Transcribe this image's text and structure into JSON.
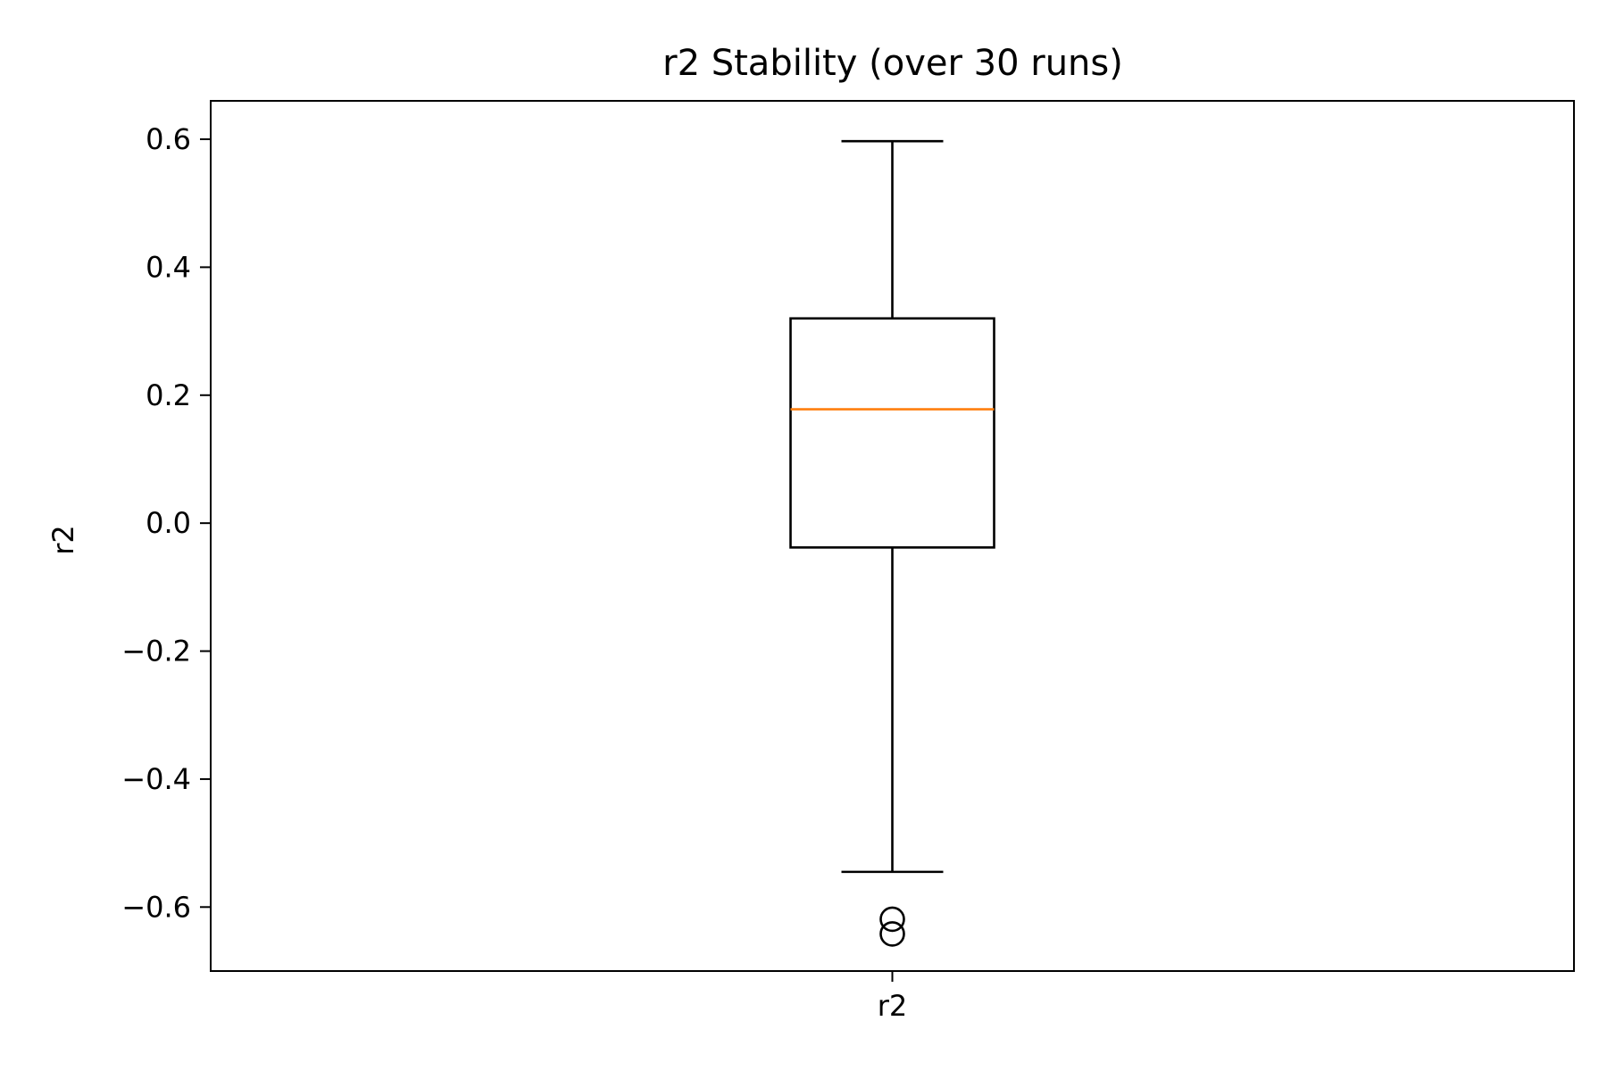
{
  "chart_data": {
    "type": "box",
    "title": "r2 Stability (over 30 runs)",
    "xlabel": "",
    "ylabel": "r2",
    "categories": [
      "r2"
    ],
    "ylim": [
      -0.7,
      0.66
    ],
    "yticks": [
      0.6,
      0.4,
      0.2,
      0.0,
      -0.2,
      -0.4,
      -0.6
    ],
    "ytick_labels": [
      "0.6",
      "0.4",
      "0.2",
      "0.0",
      "−0.2",
      "−0.4",
      "−0.6"
    ],
    "boxes": [
      {
        "category": "r2",
        "whisker_high": 0.597,
        "q3": 0.32,
        "median": 0.178,
        "q1": -0.038,
        "whisker_low": -0.545,
        "outliers": [
          -0.619,
          -0.642
        ]
      }
    ],
    "grid": false,
    "colors": {
      "box": "#000000",
      "median": "#ff7f0e",
      "background": "#ffffff"
    }
  }
}
